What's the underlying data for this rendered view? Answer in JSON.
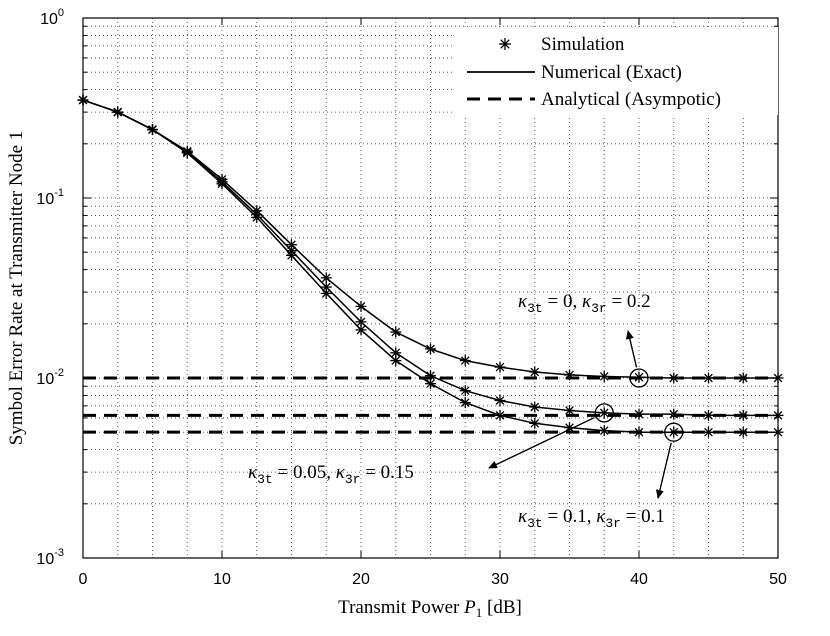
{
  "chart_data": {
    "type": "line",
    "yscale": "log",
    "xlim": [
      0,
      50
    ],
    "ylim": [
      0.001,
      1
    ],
    "xticks": [
      0,
      10,
      20,
      30,
      40,
      50
    ],
    "xtick_labels": [
      "0",
      "10",
      "20",
      "30",
      "40",
      "50"
    ],
    "yticks": [
      1,
      0.1,
      0.01,
      0.001
    ],
    "ytick_labels": [
      {
        "base": "10",
        "exp": "0"
      },
      {
        "base": "10",
        "exp": "-1"
      },
      {
        "base": "10",
        "exp": "-2"
      },
      {
        "base": "10",
        "exp": "-3"
      }
    ],
    "xlabel": {
      "pre": "Transmit Power ",
      "var": "P",
      "sub": "1",
      "post": " [dB]"
    },
    "ylabel": "Symbol Error Rate at Transmitter Node 1",
    "grid": true,
    "legend": {
      "position": "top-right",
      "items": [
        {
          "label": "Simulation",
          "style": "star-marker"
        },
        {
          "label": "Numerical (Exact)",
          "style": "solid"
        },
        {
          "label": "Analytical (Asympotic)",
          "style": "dashed"
        }
      ]
    },
    "x": [
      0,
      2.5,
      5,
      7.5,
      10,
      12.5,
      15,
      17.5,
      20,
      22.5,
      25,
      27.5,
      30,
      32.5,
      35,
      37.5,
      40,
      42.5,
      45,
      47.5,
      50
    ],
    "series": [
      {
        "name": "kappa3t=0, kappa3r=0.2",
        "simulation": [
          0.35,
          0.3,
          0.24,
          0.182,
          0.127,
          0.085,
          0.055,
          0.036,
          0.025,
          0.018,
          0.0145,
          0.0125,
          0.0115,
          0.0108,
          0.0104,
          0.0102,
          0.0101,
          0.01,
          0.01,
          0.01,
          0.01
        ],
        "asymptote": 0.01
      },
      {
        "name": "kappa3t=0.05, kappa3r=0.15",
        "simulation": [
          0.35,
          0.3,
          0.24,
          0.18,
          0.123,
          0.081,
          0.051,
          0.032,
          0.0205,
          0.0138,
          0.0103,
          0.0085,
          0.0075,
          0.0069,
          0.0066,
          0.0064,
          0.0063,
          0.0063,
          0.0062,
          0.0062,
          0.0062
        ],
        "asymptote": 0.0062
      },
      {
        "name": "kappa3t=0.1, kappa3r=0.1",
        "simulation": [
          0.35,
          0.3,
          0.24,
          0.178,
          0.12,
          0.078,
          0.048,
          0.0295,
          0.0185,
          0.0125,
          0.0093,
          0.0073,
          0.0062,
          0.0056,
          0.0053,
          0.0051,
          0.005,
          0.005,
          0.005,
          0.005,
          0.005
        ],
        "asymptote": 0.005
      }
    ],
    "annotations": [
      {
        "label": {
          "k1": "κ",
          "s1": "3t",
          "v1": "0",
          "k2": "κ",
          "s2": "3r",
          "v2": "0.2"
        },
        "circle_at": [
          40,
          0.01
        ],
        "arrow_from": [
          38.8,
          0.016
        ]
      },
      {
        "label": {
          "k1": "κ",
          "s1": "3t",
          "v1": "0.05",
          "k2": "κ",
          "s2": "3r",
          "v2": "0.15"
        },
        "circle_at": [
          37.5,
          0.0064
        ],
        "arrow_from": [
          29,
          0.0036
        ]
      },
      {
        "label": {
          "k1": "κ",
          "s1": "3t",
          "v1": "0.1",
          "k2": "κ",
          "s2": "3r",
          "v2": "0.1"
        },
        "circle_at": [
          42.5,
          0.005
        ],
        "arrow_from": [
          41.5,
          0.0026
        ]
      }
    ]
  }
}
